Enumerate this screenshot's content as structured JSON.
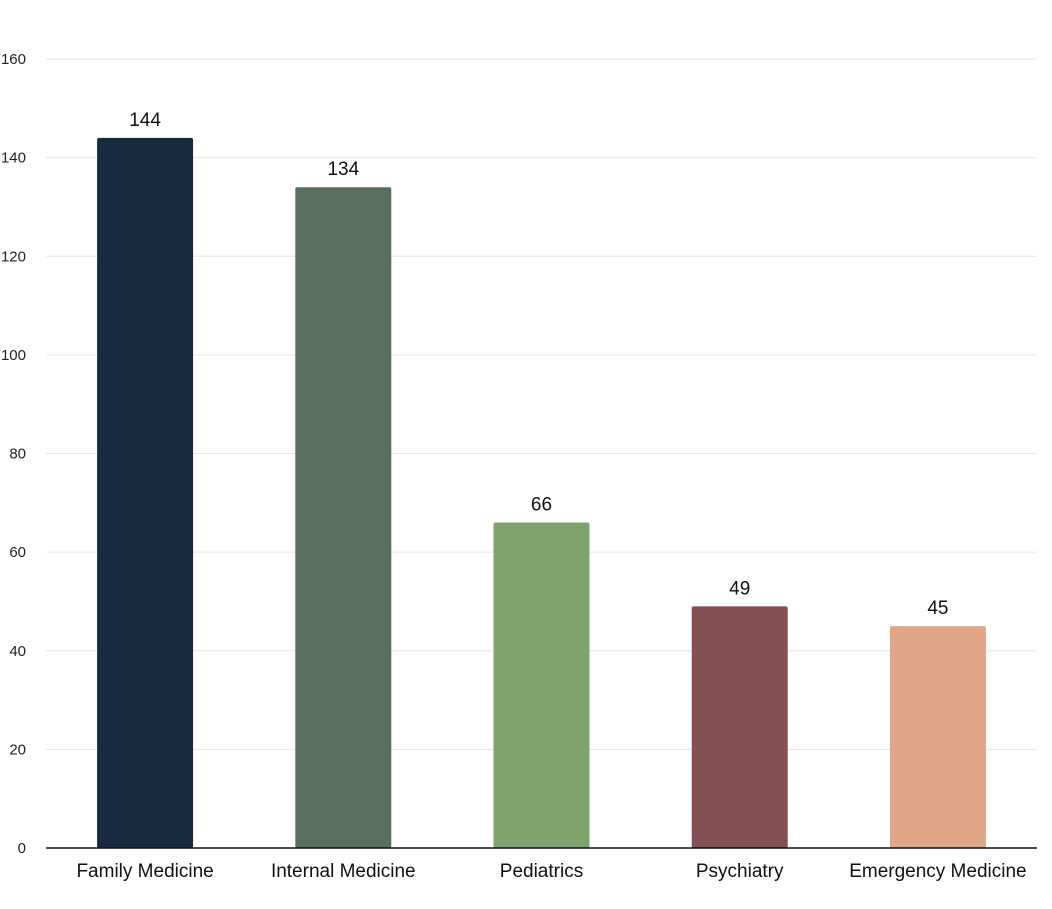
{
  "chart_data": {
    "type": "bar",
    "categories": [
      "Family Medicine",
      "Internal Medicine",
      "Pediatrics",
      "Psychiatry",
      "Emergency Medicine"
    ],
    "values": [
      144,
      134,
      66,
      49,
      45
    ],
    "data_labels": [
      "144",
      "134",
      "66",
      "49",
      "45"
    ],
    "colors": [
      "#172a40",
      "#5a6e60",
      "#80a26c",
      "#844f53",
      "#e1a588"
    ],
    "ylim": [
      0,
      160
    ],
    "yticks": [
      0,
      20,
      40,
      60,
      80,
      100,
      120,
      140,
      160
    ],
    "grid": true,
    "title": "",
    "xlabel": "",
    "ylabel": ""
  }
}
